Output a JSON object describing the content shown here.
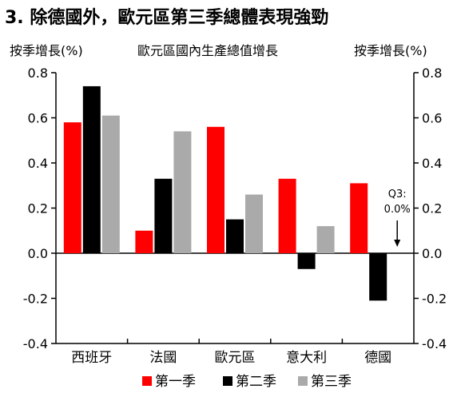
{
  "chart_data": {
    "type": "bar",
    "title": "3. 除德國外，歐元區第三季總體表現強勁",
    "ylabel_left": "按季增長(%)",
    "ylabel_center": "歐元區國內生產總值增長",
    "ylabel_right": "按季增長(%)",
    "categories": [
      "西班牙",
      "法國",
      "歐元區",
      "意大利",
      "德國"
    ],
    "series": [
      {
        "name": "第一季",
        "color": "#ff0000",
        "values": [
          0.58,
          0.1,
          0.56,
          0.33,
          0.31
        ]
      },
      {
        "name": "第二季",
        "color": "#000000",
        "values": [
          0.74,
          0.33,
          0.15,
          -0.07,
          -0.21
        ]
      },
      {
        "name": "第三季",
        "color": "#aaaaaa",
        "values": [
          0.61,
          0.54,
          0.26,
          0.12,
          0.0
        ]
      }
    ],
    "ylim": [
      -0.4,
      0.8
    ],
    "yticks": [
      "0.8",
      "0.6",
      "0.4",
      "0.2",
      "0.0",
      "-0.2",
      "-0.4"
    ],
    "annotation": {
      "text_line1": "Q3:",
      "text_line2": "0.0%"
    },
    "legend_position": "bottom",
    "grid": false
  }
}
